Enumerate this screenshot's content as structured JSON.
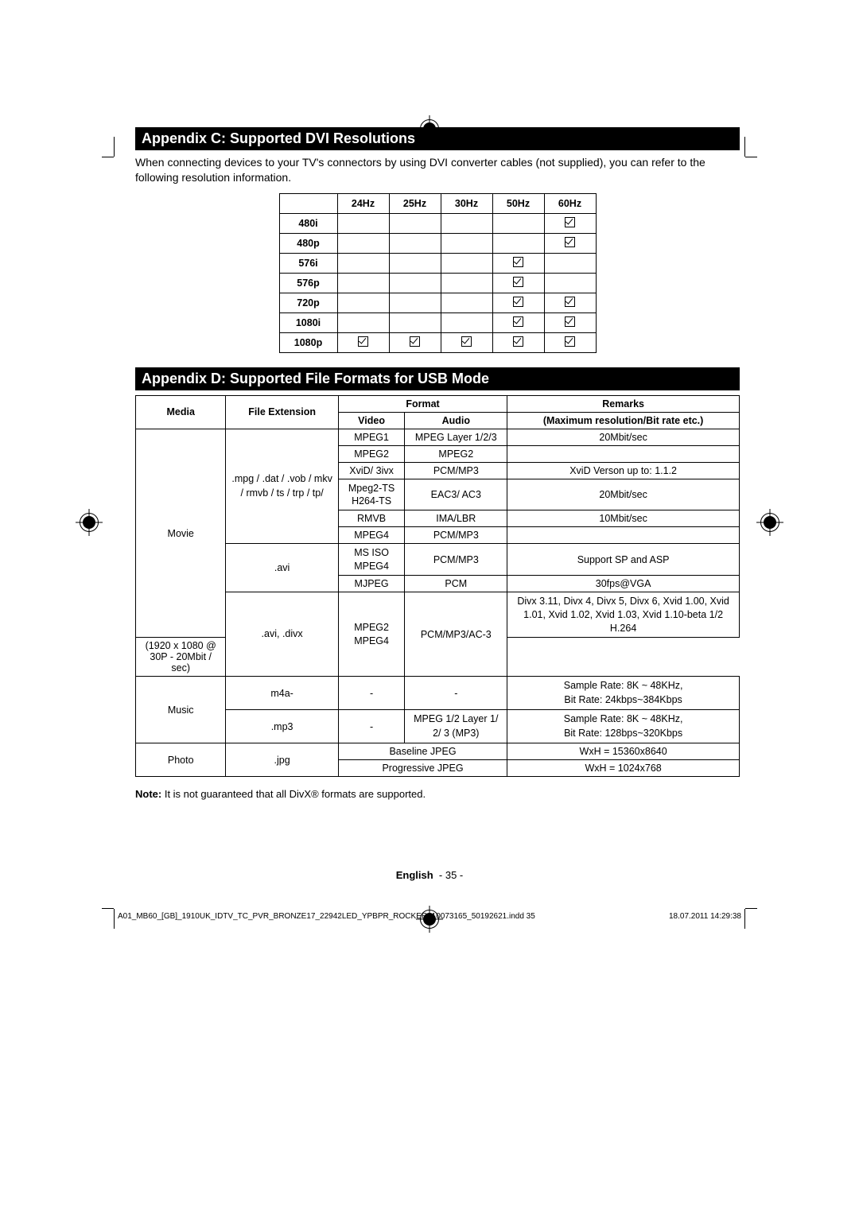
{
  "appendixC": {
    "title": "Appendix C: Supported DVI Resolutions",
    "intro": "When connecting devices to your TV's connectors by using DVI converter cables (not supplied), you can refer to the following resolution information.",
    "columns": [
      "24Hz",
      "25Hz",
      "30Hz",
      "50Hz",
      "60Hz"
    ],
    "rows": [
      {
        "label": "480i",
        "checks": [
          false,
          false,
          false,
          false,
          true
        ]
      },
      {
        "label": "480p",
        "checks": [
          false,
          false,
          false,
          false,
          true
        ]
      },
      {
        "label": "576i",
        "checks": [
          false,
          false,
          false,
          true,
          false
        ]
      },
      {
        "label": "576p",
        "checks": [
          false,
          false,
          false,
          true,
          false
        ]
      },
      {
        "label": "720p",
        "checks": [
          false,
          false,
          false,
          true,
          true
        ]
      },
      {
        "label": "1080i",
        "checks": [
          false,
          false,
          false,
          true,
          true
        ]
      },
      {
        "label": "1080p",
        "checks": [
          true,
          true,
          true,
          true,
          true
        ]
      }
    ]
  },
  "appendixD": {
    "title": "Appendix D: Supported File Formats for USB Mode",
    "headers": {
      "media": "Media",
      "fileext": "File Extension",
      "format": "Format",
      "video": "Video",
      "audio": "Audio",
      "remarks": "Remarks",
      "remarks_sub": "(Maximum resolution/Bit rate etc.)"
    },
    "movie_label": "Movie",
    "music_label": "Music",
    "photo_label": "Photo",
    "ext_movie1": ".mpg / .dat / .vob / mkv / rmvb / ts / trp / tp/",
    "ext_avi": ".avi",
    "ext_avidivx": ".avi, .divx",
    "ext_m4a": "m4a-",
    "ext_mp3": ".mp3",
    "ext_jpg": ".jpg",
    "rows_movie1": [
      {
        "video": "MPEG1",
        "audio": "MPEG Layer 1/2/3",
        "remark": "20Mbit/sec"
      },
      {
        "video": "MPEG2",
        "audio": "MPEG2",
        "remark": ""
      },
      {
        "video": "XviD/ 3ivx",
        "audio": "PCM/MP3",
        "remark": "XviD Verson up to: 1.1.2"
      },
      {
        "video": "Mpeg2-TS H264-TS",
        "audio": "EAC3/ AC3",
        "remark": "20Mbit/sec"
      },
      {
        "video": "RMVB",
        "audio": "IMA/LBR",
        "remark": "10Mbit/sec"
      },
      {
        "video": "MPEG4",
        "audio": "PCM/MP3",
        "remark": ""
      }
    ],
    "rows_avi": [
      {
        "video": "MS ISO MPEG4",
        "audio": "PCM/MP3",
        "remark": "Support SP and ASP"
      },
      {
        "video": "MJPEG",
        "audio": "PCM",
        "remark": "30fps@VGA"
      }
    ],
    "row_avidivx": {
      "video": "MPEG2 MPEG4",
      "audio": "PCM/MP3/AC-3",
      "remark1": "Divx 3.11, Divx 4, Divx 5, Divx 6, Xvid 1.00, Xvid 1.01, Xvid 1.02, Xvid 1.03, Xvid 1.10-beta 1/2 H.264",
      "remark2": "(1920 x 1080 @ 30P - 20Mbit / sec)"
    },
    "row_m4a": {
      "video": "-",
      "audio": "-",
      "remark": "Sample Rate: 8K ~ 48KHz,\nBit Rate: 24kbps~384Kbps"
    },
    "row_mp3": {
      "video": "-",
      "audio": "MPEG 1/2 Layer 1/ 2/ 3 (MP3)",
      "remark": "Sample Rate: 8K ~ 48KHz,\nBit Rate: 128bps~320Kbps"
    },
    "row_jpg1": {
      "format": "Baseline JPEG",
      "remark": "WxH = 15360x8640"
    },
    "row_jpg2": {
      "format": "Progressive JPEG",
      "remark": "WxH = 1024x768"
    }
  },
  "note_label": "Note:",
  "note_text": " It is not guaranteed that all DivX® formats are supported.",
  "footer": {
    "lang": "English",
    "page": "- 35 -",
    "file": "A01_MB60_[GB]_1910UK_IDTV_TC_PVR_BRONZE17_22942LED_YPBPR_ROCKER_10073165_50192621.indd   35",
    "date": "18.07.2011   14:29:38"
  }
}
